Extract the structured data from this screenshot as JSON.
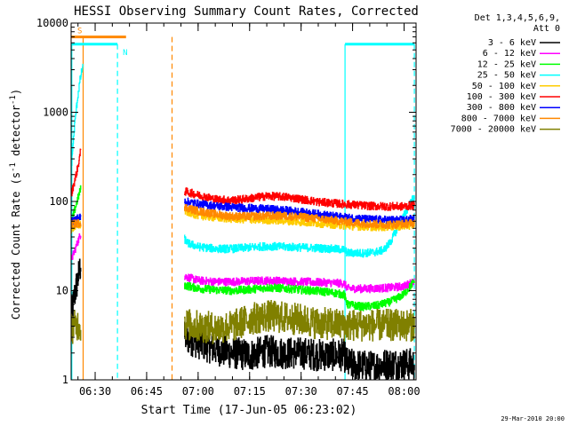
{
  "chart_data": {
    "type": "line",
    "title": "HESSI Observing Summary Count Rates, Corrected",
    "xlabel": "Start Time (17-Jun-05 06:23:02)",
    "ylabel_main": "Corrected Count Rate (s",
    "ylabel_sup1": "-1",
    "ylabel_mid": " detector",
    "ylabel_sup2": "-1",
    "ylabel_end": ")",
    "yscale": "log",
    "ylim": [
      1,
      10000
    ],
    "xlim_minutes": [
      383.0,
      483.5
    ],
    "x_ticks": [
      {
        "t": 390,
        "label": "06:30"
      },
      {
        "t": 405,
        "label": "06:45"
      },
      {
        "t": 420,
        "label": "07:00"
      },
      {
        "t": 435,
        "label": "07:15"
      },
      {
        "t": 450,
        "label": "07:30"
      },
      {
        "t": 465,
        "label": "07:45"
      },
      {
        "t": 480,
        "label": "08:00"
      }
    ],
    "y_ticks": [
      {
        "v": 1,
        "label": "1"
      },
      {
        "v": 10,
        "label": "10"
      },
      {
        "v": 100,
        "label": "100"
      },
      {
        "v": 1000,
        "label": "1000"
      },
      {
        "v": 10000,
        "label": "10000"
      }
    ],
    "legend_header": [
      "Det 1,3,4,5,6,9,",
      "Att 0"
    ],
    "legend_position": "right",
    "series": [
      {
        "name": "3 - 6 keV",
        "color": "#000000",
        "segments": [
          {
            "t": [
              383.0,
              384.0,
              385.0,
              385.8
            ],
            "y": [
              5,
              9,
              14,
              20
            ]
          },
          {
            "t": [
              416.0,
              420,
              425,
              430,
              435,
              440,
              445,
              450,
              455,
              462.5,
              463.5,
              470,
              475,
              480,
              483.0
            ],
            "y": [
              3.0,
              2.6,
              2.2,
              2.0,
              1.9,
              2.1,
              2.0,
              2.0,
              1.9,
              1.9,
              1.5,
              1.4,
              1.5,
              1.5,
              1.5
            ]
          }
        ]
      },
      {
        "name": "6 - 12 keV",
        "color": "#ff00ff",
        "segments": [
          {
            "t": [
              383.0,
              384.0,
              385.0,
              385.8
            ],
            "y": [
              22,
              28,
              36,
              44
            ]
          },
          {
            "t": [
              416.0,
              420,
              425,
              430,
              435,
              440,
              445,
              450,
              455,
              460,
              462.5,
              463.5,
              468,
              472,
              476,
              480,
              483.0
            ],
            "y": [
              14.5,
              13.0,
              12.6,
              12.6,
              12.8,
              13.0,
              12.8,
              12.6,
              12.4,
              12.2,
              12.0,
              10.6,
              10.5,
              10.6,
              10.8,
              11.2,
              12.8
            ]
          }
        ]
      },
      {
        "name": "12 - 25 keV",
        "color": "#00ff00",
        "segments": [
          {
            "t": [
              383.0,
              384.0,
              385.0,
              385.8
            ],
            "y": [
              55,
              80,
              110,
              140
            ]
          },
          {
            "t": [
              416.0,
              420,
              425,
              430,
              435,
              440,
              445,
              450,
              455,
              460,
              462.5,
              463.5,
              468,
              472,
              476,
              478,
              480,
              481.5,
              483.0
            ],
            "y": [
              11.5,
              10.6,
              10.2,
              10.0,
              10.3,
              10.8,
              10.6,
              10.2,
              9.9,
              9.4,
              9.0,
              7.0,
              6.6,
              6.8,
              7.5,
              8.2,
              9.2,
              10.8,
              13.0
            ]
          }
        ]
      },
      {
        "name": "25 - 50 keV",
        "color": "#00ffff",
        "segments": [
          {
            "t": [
              383.0,
              383.5,
              384.0,
              384.5,
              385.0,
              385.5,
              386.0,
              386.4
            ],
            "y": [
              230,
              420,
              720,
              1100,
              1600,
              2200,
              2800,
              3300
            ]
          },
          {
            "t": [
              416.0,
              417,
              420,
              425,
              430,
              435,
              440,
              445,
              450,
              455,
              460,
              462.5,
              463.5,
              468,
              471,
              474,
              476,
              478,
              480,
              481.5,
              483.0
            ],
            "y": [
              38,
              34,
              31,
              29.5,
              29.5,
              30.5,
              31.5,
              31.0,
              30.5,
              30.0,
              29.2,
              28.8,
              26.5,
              26.3,
              26.8,
              28.5,
              35,
              50,
              70,
              90,
              115
            ]
          }
        ]
      },
      {
        "name": "50 - 100 keV",
        "color": "#ffcc00",
        "segments": [
          {
            "t": [
              383.0,
              384.0,
              385.0,
              385.8
            ],
            "y": [
              48,
              52,
              54,
              55
            ]
          },
          {
            "t": [
              416.0,
              420,
              425,
              430,
              435,
              440,
              445,
              450,
              455,
              460,
              465,
              470,
              475,
              480,
              483.0
            ],
            "y": [
              78,
              70,
              66,
              64,
              63,
              62,
              61,
              59,
              57,
              55,
              53,
              52,
              52,
              53,
              55
            ]
          }
        ]
      },
      {
        "name": "100 - 300 keV",
        "color": "#ff0000",
        "segments": [
          {
            "t": [
              383.0,
              384.0,
              385.0,
              385.8
            ],
            "y": [
              120,
              170,
              250,
              380
            ]
          },
          {
            "t": [
              416.0,
              420,
              425,
              430,
              435,
              440,
              445,
              450,
              455,
              460,
              465,
              470,
              475,
              480,
              483.0
            ],
            "y": [
              130,
              118,
              106,
              103,
              108,
              115,
              113,
              106,
              99,
              95,
              92,
              89,
              88,
              88,
              91
            ]
          }
        ]
      },
      {
        "name": "300 - 800 keV",
        "color": "#0000ff",
        "segments": [
          {
            "t": [
              383.0,
              384.0,
              385.0,
              385.8
            ],
            "y": [
              60,
              63,
              65,
              66
            ]
          },
          {
            "t": [
              416.0,
              420,
              425,
              430,
              435,
              440,
              445,
              450,
              455,
              460,
              465,
              470,
              475,
              480,
              483.0
            ],
            "y": [
              100,
              94,
              89,
              86,
              84,
              82,
              80,
              76,
              72,
              68,
              65,
              63,
              62,
              62,
              64
            ]
          }
        ]
      },
      {
        "name": "800 - 7000 keV",
        "color": "#ff8800",
        "segments": [
          {
            "t": [
              383.0,
              384.0,
              385.0,
              385.8
            ],
            "y": [
              55,
              56,
              57,
              58
            ]
          },
          {
            "t": [
              416.0,
              420,
              425,
              430,
              435,
              440,
              445,
              450,
              455,
              460,
              465,
              470,
              475,
              480,
              483.0
            ],
            "y": [
              86,
              78,
              72,
              68,
              68,
              69,
              69,
              67,
              64,
              61,
              58,
              56,
              55,
              56,
              58
            ]
          }
        ]
      },
      {
        "name": "7000 - 20000 keV",
        "color": "#808000",
        "segments": [
          {
            "t": [
              383.0,
              384.0,
              385.0,
              385.8
            ],
            "y": [
              3.8,
              4.0,
              4.2,
              4.0
            ]
          },
          {
            "t": [
              416.0,
              420,
              425,
              430,
              435,
              440,
              445,
              450,
              455,
              460,
              462.5,
              463.5,
              470,
              475,
              480,
              483.0
            ],
            "y": [
              4.2,
              4.0,
              3.8,
              4.0,
              4.8,
              5.2,
              5.0,
              4.7,
              4.3,
              4.2,
              4.1,
              4.1,
              4.1,
              4.1,
              4.1,
              4.1
            ]
          }
        ]
      }
    ],
    "flag_bars": [
      {
        "label": "S",
        "color": "#ff8800",
        "t_start": 383.0,
        "t_end": 399.0,
        "y": 7000
      },
      {
        "label": "N",
        "color": "#00ffff",
        "t_start": 383.0,
        "t_end": 396.5,
        "y": 5800
      },
      {
        "label": "",
        "color": "#00ffff",
        "t_start": 462.8,
        "t_end": 483.0,
        "y": 5800
      }
    ],
    "vertical_markers": [
      {
        "t": 383.2,
        "color": "#00ffff",
        "style": "solid",
        "y_top": 5800
      },
      {
        "t": 386.5,
        "color": "#ff8800",
        "style": "solid",
        "y_top": 7000
      },
      {
        "t": 396.5,
        "color": "#00ffff",
        "style": "dashed",
        "y_top": 5800
      },
      {
        "t": 412.4,
        "color": "#ff8800",
        "style": "dashed",
        "y_top": 7000
      },
      {
        "t": 462.8,
        "color": "#00ffff",
        "style": "solid",
        "y_top": 5800
      },
      {
        "t": 483.0,
        "color": "#00ffff",
        "style": "dashed",
        "y_top": 5800
      }
    ],
    "footer_date": "29-Mar-2010 20:00"
  }
}
